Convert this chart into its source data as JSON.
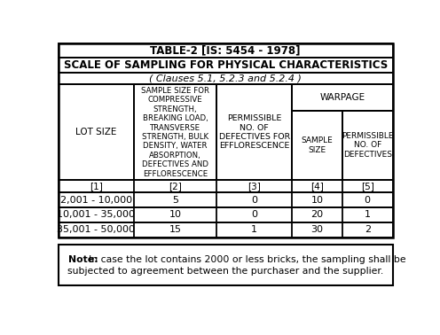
{
  "title1": "TABLE-2 [IS: 5454 - 1978]",
  "title2": "SCALE OF SAMPLING FOR PHYSICAL CHARACTERISTICS",
  "title3": "( Clauses 5.1, 5.2.3 and 5.2.4 )",
  "header_col0": "LOT SIZE",
  "header_col1": "SAMPLE SIZE FOR\nCOMPRESSIVE\nSTRENGTH,\nBREAKING LOAD,\nTRANSVERSE\nSTRENGTH, BULK\nDENSITY, WATER\nABSORPTION,\nDEFECTIVES AND\nEFFLORESCENCE",
  "header_col2": "PERMISSIBLE\nNO. OF\nDEFECTIVES FOR\nEFFLORESCENCE",
  "header_warpage": "WARPAGE",
  "header_col3": "SAMPLE\nSIZE",
  "header_col4": "PERMISSIBLE\nNO. OF\nDEFECTIVES",
  "idx_labels": [
    "[1]",
    "[2]",
    "[3]",
    "[4]",
    "[5]"
  ],
  "data_rows": [
    [
      "2,001 - 10,000",
      "5",
      "0",
      "10",
      "0"
    ],
    [
      "10,001 - 35,000",
      "10",
      "0",
      "20",
      "1"
    ],
    [
      "35,001 - 50,000",
      "15",
      "1",
      "30",
      "2"
    ]
  ],
  "note_bold": "Note:",
  "note_text": "In case the lot contains 2000 or less bricks, the sampling shall be\nsubjected to agreement between the purchaser and the supplier.",
  "bg_color": "#ffffff",
  "border_color": "#000000"
}
